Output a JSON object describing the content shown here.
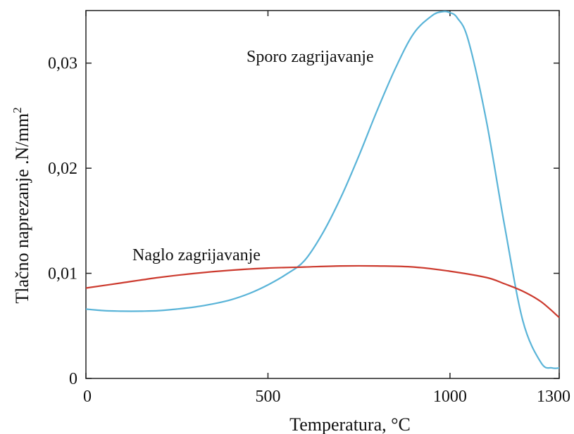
{
  "chart_data": {
    "type": "line",
    "title": "",
    "xlabel": "Temperatura, °C",
    "ylabel_main": "Tlačno naprezanje .N/mm",
    "ylabel_sup": "2",
    "xlim": [
      0,
      1300
    ],
    "ylim": [
      0,
      0.035
    ],
    "xticks": [
      0,
      500,
      1000,
      1300
    ],
    "xtick_labels": [
      "0",
      "500",
      "1000",
      "1300"
    ],
    "yticks": [
      0,
      0.01,
      0.02,
      0.03
    ],
    "ytick_labels": [
      "0",
      "0,01",
      "0,02",
      "0,03"
    ],
    "grid": false,
    "series": [
      {
        "name": "Sporo zagrijavanje",
        "color": "#5ab4d8",
        "x": [
          0,
          50,
          100,
          150,
          200,
          250,
          300,
          350,
          400,
          450,
          500,
          550,
          600,
          650,
          700,
          750,
          800,
          850,
          900,
          950,
          980,
          1000,
          1020,
          1050,
          1100,
          1150,
          1200,
          1250,
          1280,
          1300
        ],
        "y": [
          0.0066,
          0.00645,
          0.0064,
          0.0064,
          0.00645,
          0.0066,
          0.0068,
          0.0071,
          0.0075,
          0.0081,
          0.0089,
          0.0099,
          0.0112,
          0.0138,
          0.0172,
          0.0212,
          0.0255,
          0.0295,
          0.0328,
          0.0345,
          0.0349,
          0.0348,
          0.0343,
          0.0322,
          0.0245,
          0.0145,
          0.0055,
          0.0015,
          0.001,
          0.001
        ]
      },
      {
        "name": "Naglo zagrijavanje",
        "color": "#cc3a2e",
        "x": [
          0,
          100,
          200,
          300,
          400,
          500,
          600,
          700,
          800,
          900,
          1000,
          1100,
          1150,
          1200,
          1250,
          1300
        ],
        "y": [
          0.0086,
          0.0091,
          0.0096,
          0.01,
          0.0103,
          0.0105,
          0.0106,
          0.0107,
          0.0107,
          0.0106,
          0.0102,
          0.0096,
          0.009,
          0.0083,
          0.0073,
          0.0058
        ]
      }
    ]
  }
}
